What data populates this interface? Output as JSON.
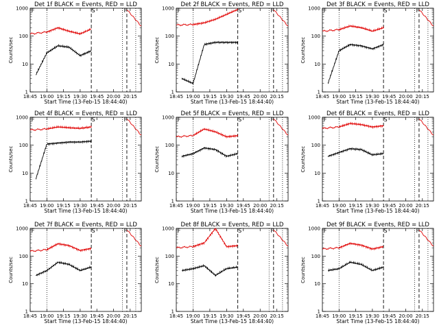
{
  "ylabel": "Counts/sec",
  "xlabel": "Start Time (13-Feb-15 18:44:40)",
  "x_tick_labels": [
    "18:45",
    "19:00",
    "19:15",
    "19:30",
    "19:45",
    "20:00",
    "20:15"
  ],
  "y_tick_labels": [
    "1",
    "10",
    "100",
    "1000"
  ],
  "colors": {
    "events": "#000000",
    "lld": "#e00000",
    "axes": "#000000"
  },
  "chart_data": [
    {
      "type": "line",
      "title": "Det 1f BLACK = Events, RED = LLD",
      "ylim": [
        1,
        1000
      ],
      "xlim": [
        "18:45",
        "20:25"
      ],
      "y_scale": "log",
      "markers": [
        "F",
        "S",
        "F"
      ],
      "vlines_dotted": [
        "19:00",
        "20:08",
        "20:20"
      ],
      "vlines_dashed": [
        "19:40",
        "20:12"
      ],
      "series": [
        {
          "values_sample": {
            "x": [
              "18:45",
              "19:00",
              "19:10",
              "19:20",
              "19:30",
              "19:40"
            ],
            "y": [
              120,
              140,
              200,
              150,
              120,
              180
            ]
          }
        },
        {
          "values_sample": {
            "x": [
              "18:50",
              "19:00",
              "19:10",
              "19:20",
              "19:30",
              "19:40"
            ],
            "y": [
              4,
              25,
              45,
              40,
              20,
              30
            ]
          }
        }
      ]
    },
    {
      "type": "line",
      "title": "Det 2f BLACK = Events, RED = LLD",
      "ylim": [
        1,
        1000
      ],
      "xlim": [
        "18:45",
        "20:25"
      ],
      "y_scale": "log",
      "markers": [
        "F",
        "S",
        "F"
      ],
      "vlines_dotted": [
        "19:00",
        "20:08",
        "20:20"
      ],
      "vlines_dashed": [
        "19:40",
        "20:12"
      ],
      "series": [
        {
          "values_sample": {
            "x": [
              "18:45",
              "19:00",
              "19:10",
              "19:20",
              "19:30",
              "19:40"
            ],
            "y": [
              250,
              260,
              300,
              400,
              600,
              900
            ]
          }
        },
        {
          "values_sample": {
            "x": [
              "18:50",
              "19:00",
              "19:10",
              "19:20",
              "19:30",
              "19:40"
            ],
            "y": [
              3,
              2,
              50,
              60,
              60,
              60
            ]
          }
        }
      ]
    },
    {
      "type": "line",
      "title": "Det 3f BLACK = Events, RED = LLD",
      "ylim": [
        1,
        1000
      ],
      "xlim": [
        "18:45",
        "20:25"
      ],
      "y_scale": "log",
      "markers": [
        "F",
        "S",
        "F"
      ],
      "vlines_dotted": [
        "19:00",
        "20:08",
        "20:20"
      ],
      "vlines_dashed": [
        "19:40",
        "20:12"
      ],
      "series": [
        {
          "values_sample": {
            "x": [
              "18:45",
              "19:00",
              "19:10",
              "19:20",
              "19:30",
              "19:40"
            ],
            "y": [
              150,
              170,
              230,
              200,
              150,
              200
            ]
          }
        },
        {
          "values_sample": {
            "x": [
              "18:50",
              "19:00",
              "19:10",
              "19:20",
              "19:30",
              "19:40"
            ],
            "y": [
              2,
              30,
              50,
              45,
              35,
              50
            ]
          }
        }
      ]
    },
    {
      "type": "line",
      "title": "Det 4f BLACK = Events, RED = LLD",
      "ylim": [
        1,
        1000
      ],
      "xlim": [
        "18:45",
        "20:25"
      ],
      "y_scale": "log",
      "markers": [
        "F",
        "S",
        "F"
      ],
      "vlines_dotted": [
        "19:00",
        "20:08",
        "20:20"
      ],
      "vlines_dashed": [
        "19:40",
        "20:12"
      ],
      "series": [
        {
          "values_sample": {
            "x": [
              "18:45",
              "19:00",
              "19:10",
              "19:20",
              "19:30",
              "19:40"
            ],
            "y": [
              350,
              380,
              450,
              420,
              400,
              450
            ]
          }
        },
        {
          "values_sample": {
            "x": [
              "18:50",
              "19:00",
              "19:10",
              "19:20",
              "19:30",
              "19:40"
            ],
            "y": [
              6,
              110,
              120,
              130,
              130,
              140
            ]
          }
        }
      ]
    },
    {
      "type": "line",
      "title": "Det 5f BLACK = Events, RED = LLD",
      "ylim": [
        1,
        1000
      ],
      "xlim": [
        "18:45",
        "20:25"
      ],
      "y_scale": "log",
      "markers": [
        "F",
        "S",
        "F"
      ],
      "vlines_dotted": [
        "19:00",
        "20:08",
        "20:20"
      ],
      "vlines_dashed": [
        "19:40",
        "20:12"
      ],
      "series": [
        {
          "values_sample": {
            "x": [
              "18:45",
              "19:00",
              "19:10",
              "19:20",
              "19:30",
              "19:40"
            ],
            "y": [
              200,
              220,
              380,
              300,
              200,
              220
            ]
          }
        },
        {
          "values_sample": {
            "x": [
              "18:50",
              "19:00",
              "19:10",
              "19:20",
              "19:30",
              "19:40"
            ],
            "y": [
              40,
              50,
              80,
              70,
              40,
              50
            ]
          }
        }
      ]
    },
    {
      "type": "line",
      "title": "Det 6f BLACK = Events, RED = LLD",
      "ylim": [
        1,
        1000
      ],
      "xlim": [
        "18:45",
        "20:25"
      ],
      "y_scale": "log",
      "markers": [
        "F",
        "S",
        "F"
      ],
      "vlines_dotted": [
        "19:00",
        "20:08",
        "20:20"
      ],
      "vlines_dashed": [
        "19:40",
        "20:12"
      ],
      "series": [
        {
          "values_sample": {
            "x": [
              "18:45",
              "19:00",
              "19:10",
              "19:20",
              "19:30",
              "19:40"
            ],
            "y": [
              400,
              450,
              600,
              550,
              450,
              500
            ]
          }
        },
        {
          "values_sample": {
            "x": [
              "18:50",
              "19:00",
              "19:10",
              "19:20",
              "19:30",
              "19:40"
            ],
            "y": [
              40,
              55,
              75,
              70,
              45,
              50
            ]
          }
        }
      ]
    },
    {
      "type": "line",
      "title": "Det 7f BLACK = Events, RED = LLD",
      "ylim": [
        1,
        1000
      ],
      "xlim": [
        "18:45",
        "20:25"
      ],
      "y_scale": "log",
      "markers": [
        "F",
        "S",
        "F"
      ],
      "vlines_dotted": [
        "19:00",
        "20:08",
        "20:20"
      ],
      "vlines_dashed": [
        "19:40",
        "20:12"
      ],
      "series": [
        {
          "values_sample": {
            "x": [
              "18:45",
              "19:00",
              "19:10",
              "19:20",
              "19:30",
              "19:40"
            ],
            "y": [
              150,
              170,
              280,
              240,
              160,
              190
            ]
          }
        },
        {
          "values_sample": {
            "x": [
              "18:50",
              "19:00",
              "19:10",
              "19:20",
              "19:30",
              "19:40"
            ],
            "y": [
              20,
              30,
              60,
              50,
              30,
              40
            ]
          }
        }
      ]
    },
    {
      "type": "line",
      "title": "Det 8f BLACK = Events, RED = LLD",
      "ylim": [
        1,
        1000
      ],
      "xlim": [
        "18:45",
        "20:25"
      ],
      "y_scale": "log",
      "markers": [
        "F",
        "S",
        "F"
      ],
      "vlines_dotted": [
        "19:00",
        "20:08",
        "20:20"
      ],
      "vlines_dashed": [
        "19:40",
        "20:12"
      ],
      "series": [
        {
          "values_sample": {
            "x": [
              "18:45",
              "19:00",
              "19:10",
              "19:20",
              "19:30",
              "19:40"
            ],
            "y": [
              200,
              220,
              300,
              1000,
              220,
              240
            ]
          }
        },
        {
          "values_sample": {
            "x": [
              "18:50",
              "19:00",
              "19:10",
              "19:20",
              "19:30",
              "19:40"
            ],
            "y": [
              30,
              35,
              45,
              20,
              35,
              40
            ]
          }
        }
      ]
    },
    {
      "type": "line",
      "title": "Det 9f BLACK = Events, RED = LLD",
      "ylim": [
        1,
        1000
      ],
      "xlim": [
        "18:45",
        "20:25"
      ],
      "y_scale": "log",
      "markers": [
        "F",
        "S",
        "F"
      ],
      "vlines_dotted": [
        "19:00",
        "20:08",
        "20:20"
      ],
      "vlines_dashed": [
        "19:40",
        "20:12"
      ],
      "series": [
        {
          "values_sample": {
            "x": [
              "18:45",
              "19:00",
              "19:10",
              "19:20",
              "19:30",
              "19:40"
            ],
            "y": [
              180,
              200,
              290,
              250,
              180,
              220
            ]
          }
        },
        {
          "values_sample": {
            "x": [
              "18:50",
              "19:00",
              "19:10",
              "19:20",
              "19:30",
              "19:40"
            ],
            "y": [
              30,
              35,
              60,
              50,
              30,
              40
            ]
          }
        }
      ]
    }
  ]
}
